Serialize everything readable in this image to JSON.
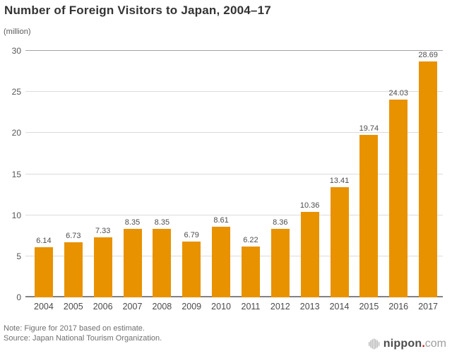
{
  "header": {
    "title": "Number of Foreign Visitors to Japan, 2004–17",
    "unit_label": "(million)"
  },
  "chart_data": {
    "type": "bar",
    "title": "Number of Foreign Visitors to Japan, 2004–17",
    "unit": "million",
    "categories": [
      "2004",
      "2005",
      "2006",
      "2007",
      "2008",
      "2009",
      "2010",
      "2011",
      "2012",
      "2013",
      "2014",
      "2015",
      "2016",
      "2017"
    ],
    "values": [
      6.14,
      6.73,
      7.33,
      8.35,
      8.35,
      6.79,
      8.61,
      6.22,
      8.36,
      10.36,
      13.41,
      19.74,
      24.03,
      28.69
    ],
    "xlabel": "",
    "ylabel": "(million)",
    "ylim": [
      0,
      30
    ],
    "yticks": [
      0,
      5,
      10,
      15,
      20,
      25,
      30
    ],
    "grid": true,
    "legend": "none",
    "value_labels": true,
    "bar_color": "#e89200"
  },
  "footer": {
    "note": "Note: Figure for 2017 based on estimate.",
    "source": "Source: Japan National Tourism Organization.",
    "logo": {
      "brand": "nippon",
      "dot": ".",
      "tld": "com",
      "brand_color": "#4b4b4b",
      "dot_color": "#dc000c",
      "tld_color": "#9e9e9e",
      "mark_color": "#b9b9b9"
    }
  }
}
